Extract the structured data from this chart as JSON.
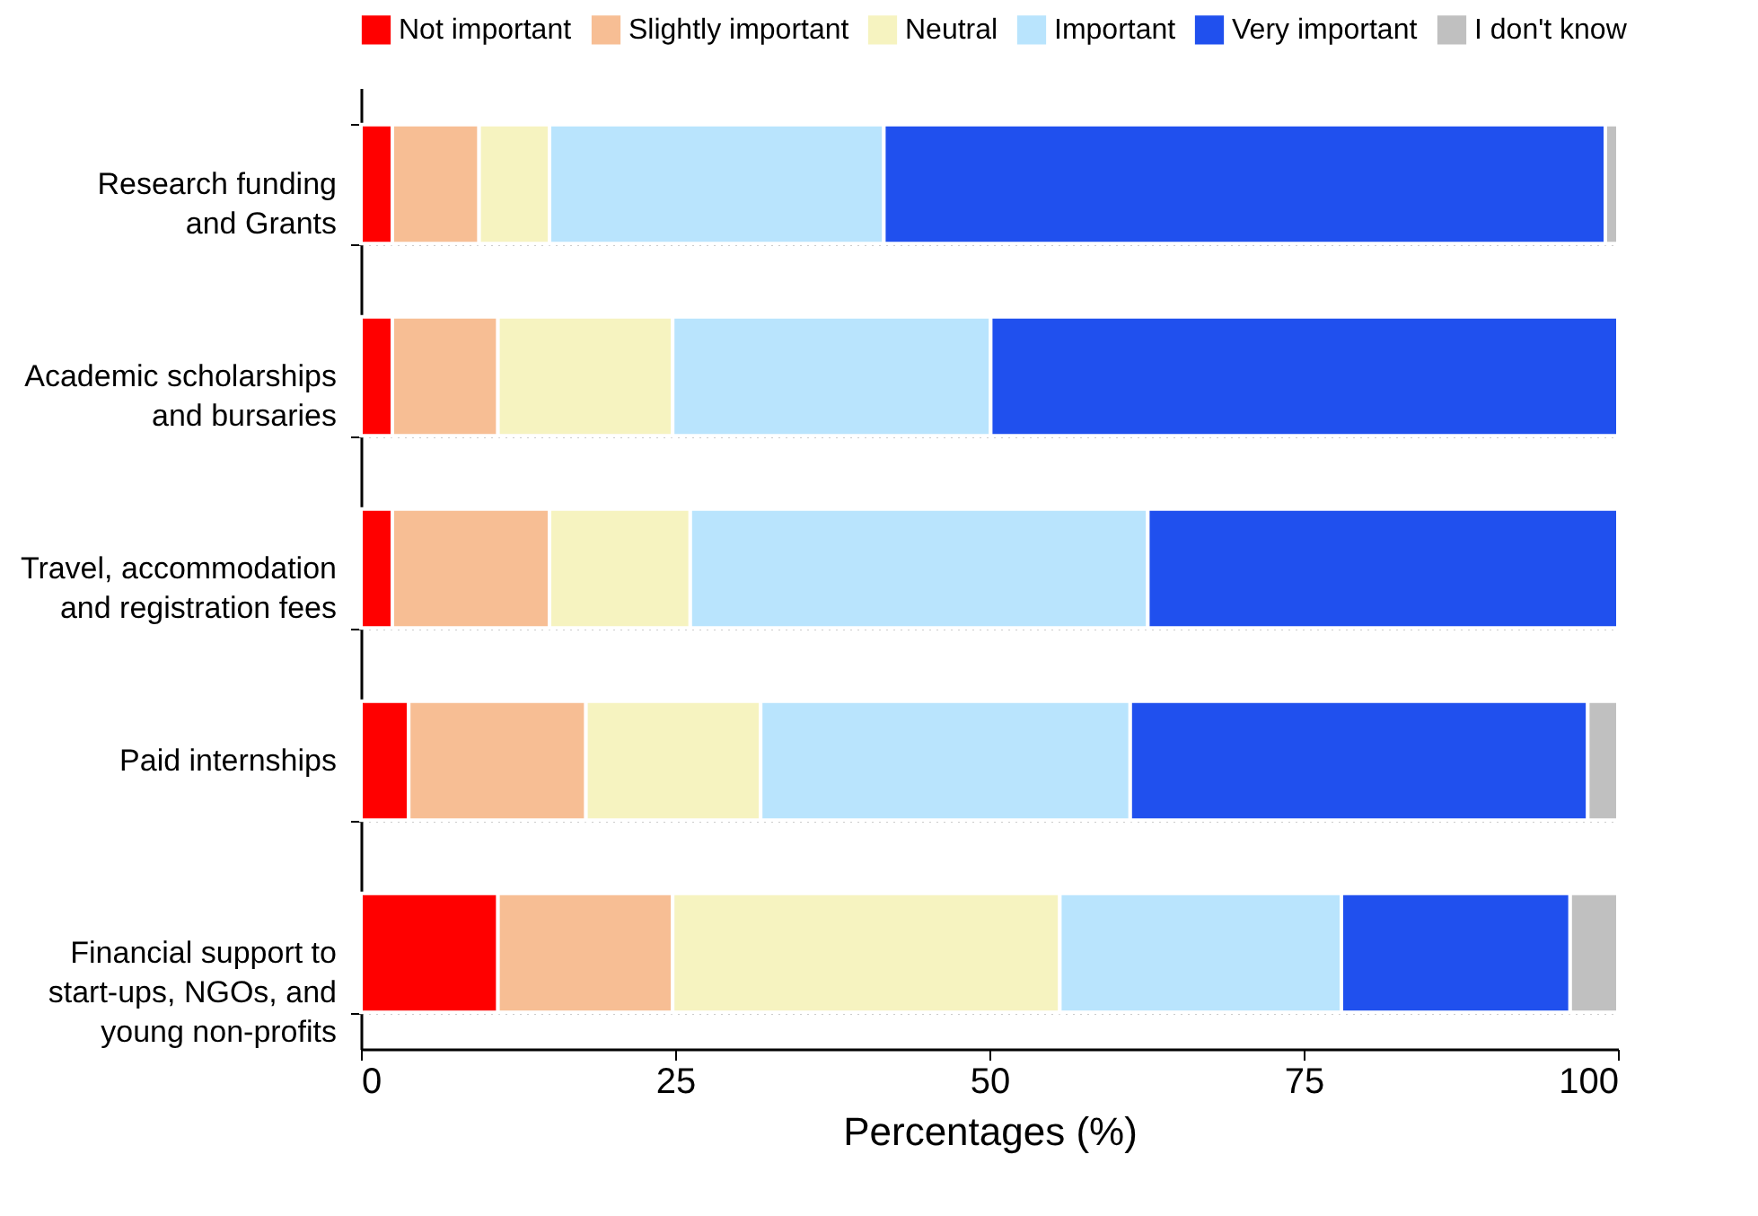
{
  "chart_data": {
    "type": "bar",
    "orientation": "horizontal",
    "stacked": true,
    "xlabel": "Percentages (%)",
    "categories": [
      "Research funding\nand Grants",
      "Academic scholarships\nand bursaries",
      "Travel, accommodation\nand registration fees",
      "Paid internships",
      "Financial support to\nstart-ups, NGOs, and\nyoung non-profits"
    ],
    "series": [
      {
        "name": "Not important",
        "color": "#ff0000",
        "values": [
          2.5,
          2.5,
          2.5,
          3.8,
          10.9
        ]
      },
      {
        "name": "Slightly important",
        "color": "#f7be94",
        "values": [
          6.9,
          8.4,
          12.5,
          14.1,
          13.9
        ]
      },
      {
        "name": "Neutral",
        "color": "#f6f3c0",
        "values": [
          5.6,
          13.9,
          11.2,
          13.9,
          30.8
        ]
      },
      {
        "name": "Important",
        "color": "#b9e4fd",
        "values": [
          26.6,
          25.3,
          36.4,
          29.4,
          22.4
        ]
      },
      {
        "name": "Very important",
        "color": "#2050ee",
        "values": [
          57.4,
          49.9,
          37.4,
          36.4,
          18.2
        ]
      },
      {
        "name": "I don't know",
        "color": "#c0c0c0",
        "values": [
          1.0,
          0,
          0,
          2.4,
          3.8
        ]
      }
    ],
    "xlim": [
      0,
      100
    ],
    "xticks": [
      0,
      25,
      50,
      75,
      100
    ],
    "grid": "y",
    "legend": "top"
  }
}
